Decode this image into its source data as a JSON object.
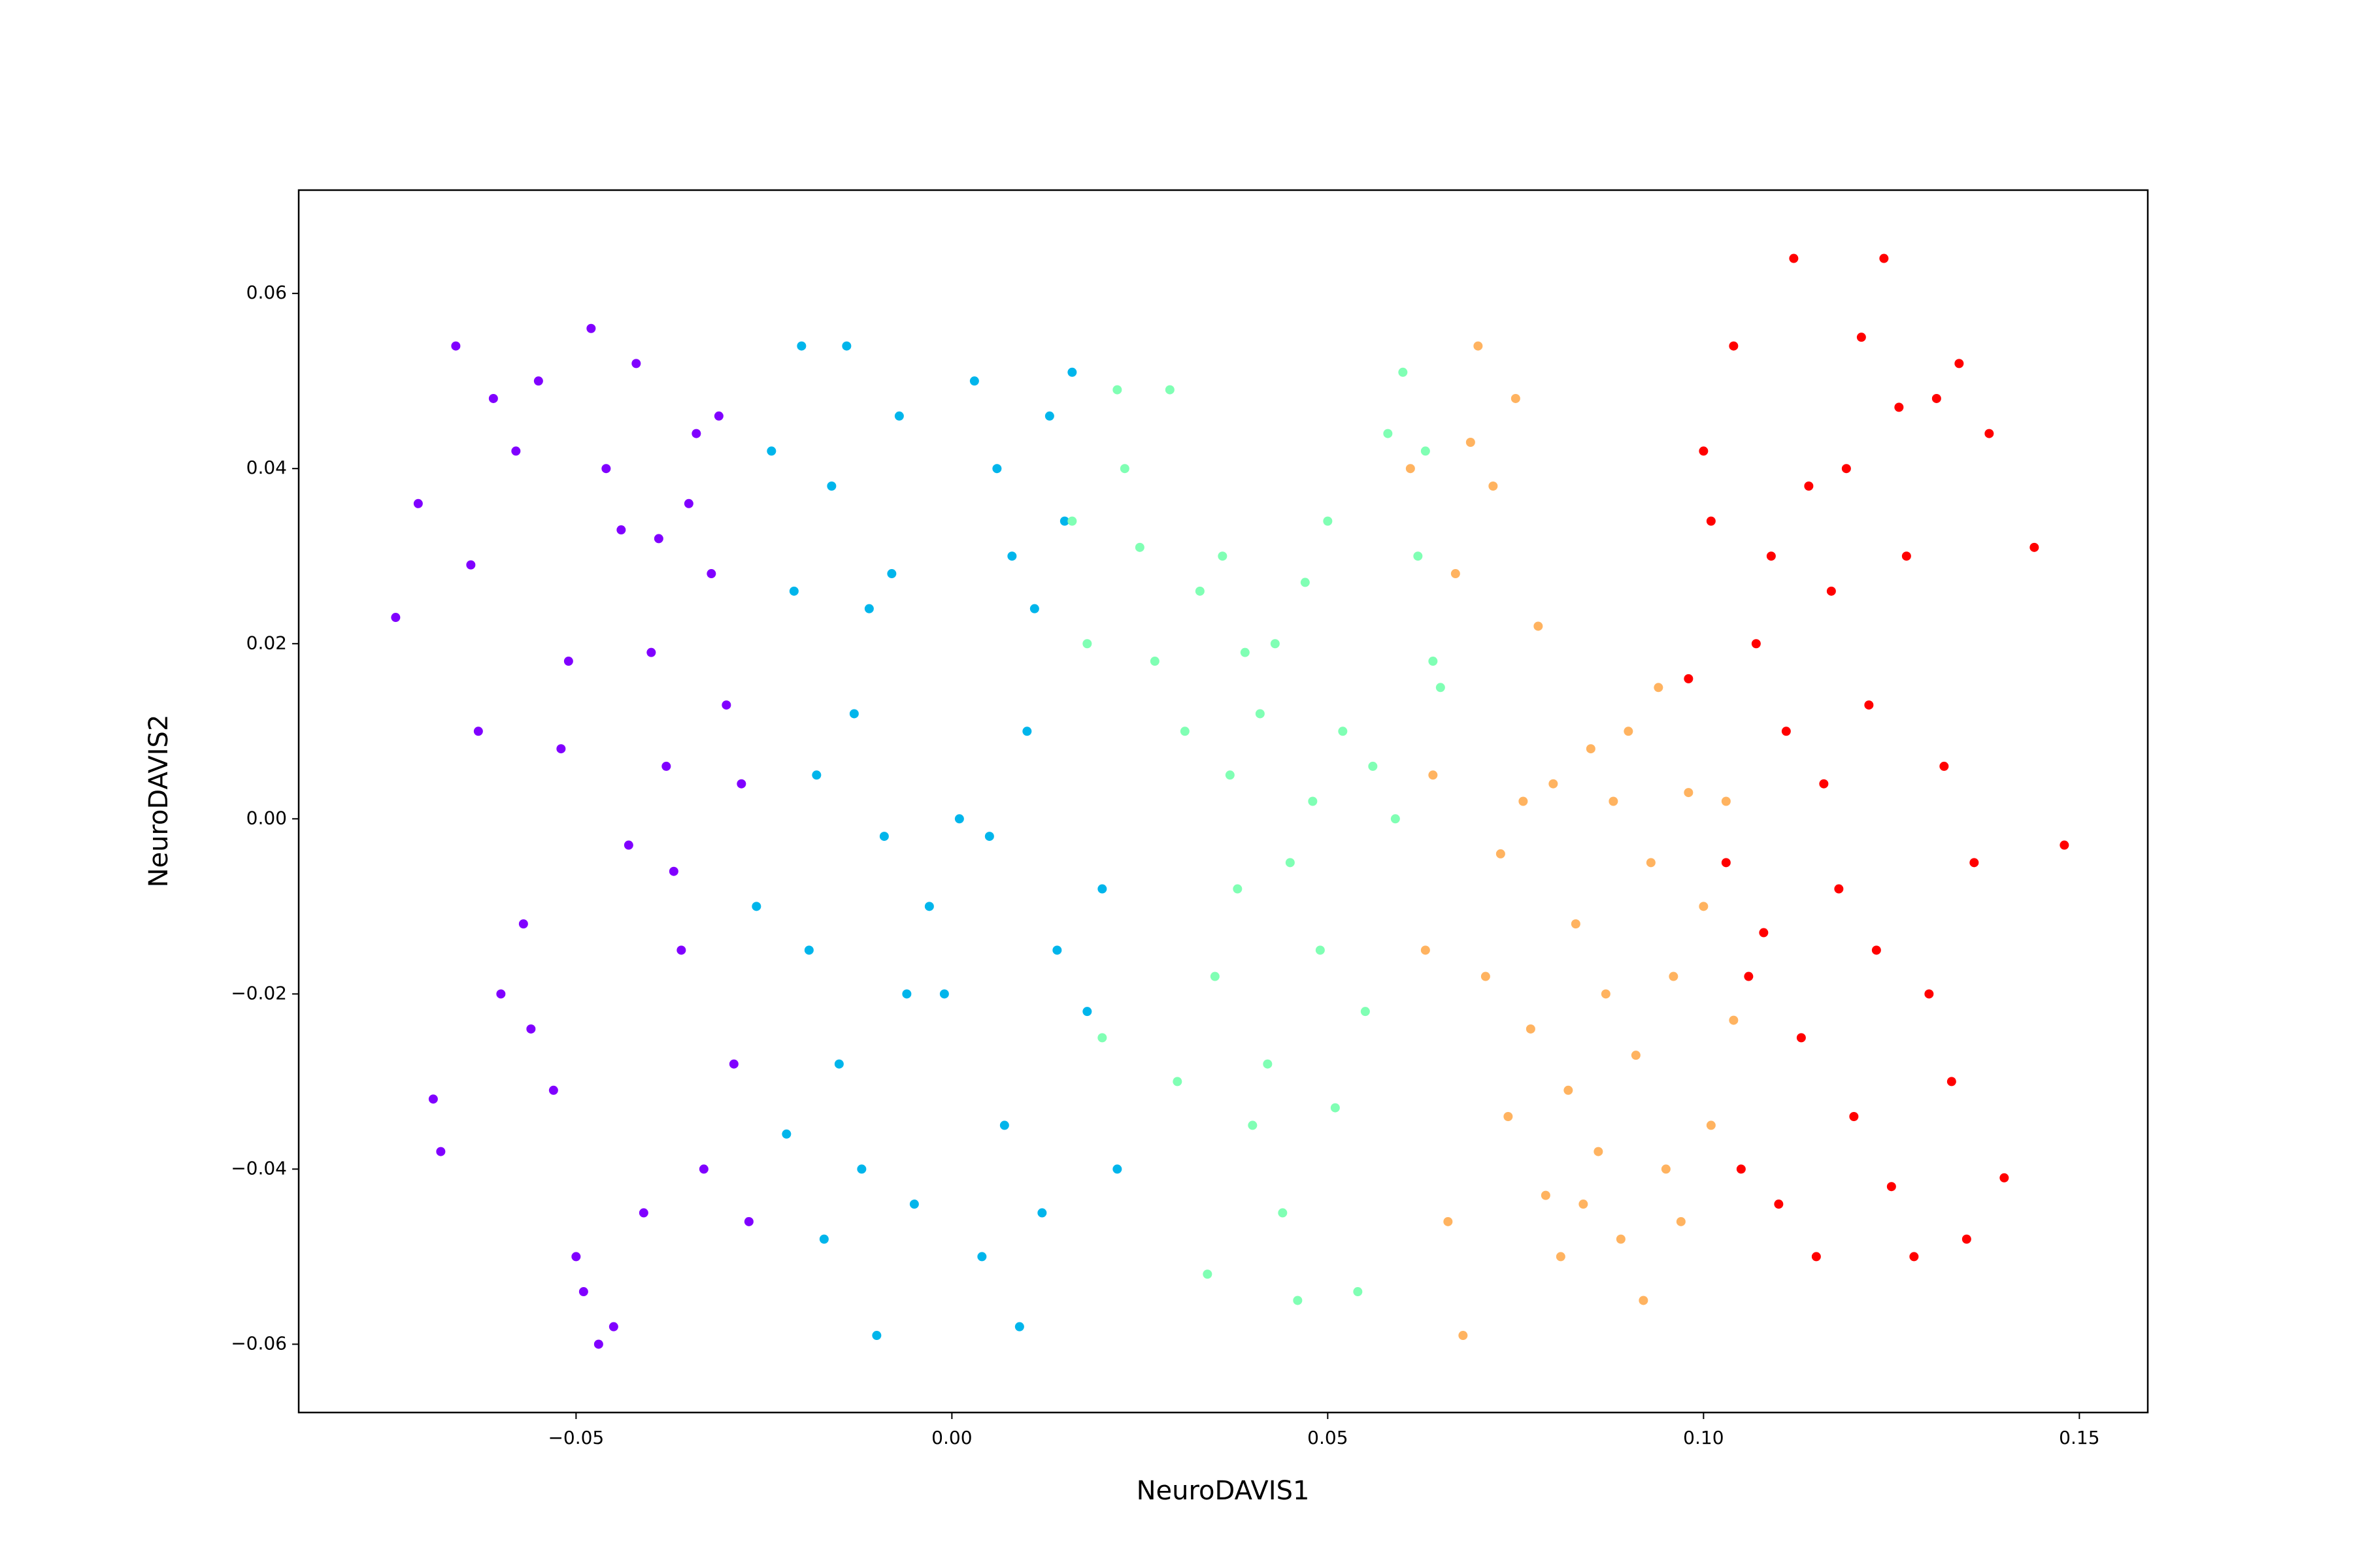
{
  "chart_data": {
    "type": "scatter",
    "x_label": "NeuroDAVIS1",
    "y_label": "NeuroDAVIS2",
    "xlim": [
      -0.0869,
      0.1591
    ],
    "ylim": [
      -0.0678,
      0.0718
    ],
    "xticks": [
      {
        "value": -0.05,
        "label": "−0.05"
      },
      {
        "value": 0,
        "label": "0.00"
      },
      0.05,
      {
        "value": 0.1,
        "label": "0.10"
      },
      0.15
    ],
    "yticks": [
      {
        "value": -0.06,
        "label": "−0.06"
      },
      {
        "value": -0.04,
        "label": "−0.04"
      },
      {
        "value": -0.02,
        "label": "−0.02"
      },
      {
        "value": 0,
        "label": "0.00"
      },
      0.02,
      0.04,
      0.06
    ],
    "series": [
      {
        "color": "#8000ff",
        "x": [
          -0.074,
          -0.071,
          -0.068,
          -0.066,
          -0.064,
          -0.061,
          -0.06,
          -0.058,
          -0.056,
          -0.055,
          -0.053,
          -0.051,
          -0.05,
          -0.048,
          -0.047,
          -0.046,
          -0.045,
          -0.044,
          -0.043,
          -0.042,
          -0.041,
          -0.04,
          -0.039,
          -0.038,
          -0.036,
          -0.035,
          -0.034,
          -0.033,
          -0.031,
          -0.03,
          -0.029,
          -0.028,
          -0.027,
          -0.069,
          -0.063,
          -0.057,
          -0.052,
          -0.049,
          -0.037,
          -0.032
        ],
        "y": [
          0.023,
          0.036,
          -0.038,
          0.054,
          0.029,
          0.048,
          -0.02,
          0.042,
          -0.024,
          0.05,
          -0.031,
          0.018,
          -0.05,
          0.056,
          -0.06,
          0.04,
          -0.058,
          0.033,
          -0.003,
          0.052,
          -0.045,
          0.019,
          0.032,
          0.006,
          -0.015,
          0.036,
          0.044,
          -0.04,
          0.046,
          0.013,
          -0.028,
          0.004,
          -0.046,
          -0.032,
          0.01,
          -0.012,
          0.008,
          -0.054,
          -0.006,
          0.028
        ]
      },
      {
        "color": "#00b5eb",
        "x": [
          -0.026,
          -0.024,
          -0.022,
          -0.021,
          -0.02,
          -0.019,
          -0.018,
          -0.017,
          -0.016,
          -0.015,
          -0.014,
          -0.013,
          -0.012,
          -0.011,
          -0.01,
          -0.009,
          -0.008,
          -0.007,
          -0.006,
          -0.005,
          -0.003,
          -0.001,
          0.001,
          0.003,
          0.004,
          0.005,
          0.006,
          0.007,
          0.008,
          0.009,
          0.01,
          0.011,
          0.012,
          0.013,
          0.014,
          0.015,
          0.016,
          0.018,
          0.02,
          0.022
        ],
        "y": [
          -0.01,
          0.042,
          -0.036,
          0.026,
          0.054,
          -0.015,
          0.005,
          -0.048,
          0.038,
          -0.028,
          0.054,
          0.012,
          -0.04,
          0.024,
          -0.059,
          -0.002,
          0.028,
          0.046,
          -0.02,
          -0.044,
          -0.01,
          -0.02,
          0.0,
          0.05,
          -0.05,
          -0.002,
          0.04,
          -0.035,
          0.03,
          -0.058,
          0.01,
          0.024,
          -0.045,
          0.046,
          -0.015,
          0.034,
          0.051,
          -0.022,
          -0.008,
          -0.04
        ]
      },
      {
        "color": "#80ffb4",
        "x": [
          0.016,
          0.018,
          0.02,
          0.022,
          0.023,
          0.025,
          0.027,
          0.029,
          0.03,
          0.031,
          0.033,
          0.034,
          0.035,
          0.036,
          0.037,
          0.038,
          0.039,
          0.04,
          0.041,
          0.042,
          0.043,
          0.044,
          0.045,
          0.046,
          0.047,
          0.048,
          0.049,
          0.05,
          0.051,
          0.052,
          0.054,
          0.055,
          0.056,
          0.058,
          0.059,
          0.06,
          0.062,
          0.063,
          0.064,
          0.065
        ],
        "y": [
          0.034,
          0.02,
          -0.025,
          0.049,
          0.04,
          0.031,
          0.018,
          0.049,
          -0.03,
          0.01,
          0.026,
          -0.052,
          -0.018,
          0.03,
          0.005,
          -0.008,
          0.019,
          -0.035,
          0.012,
          -0.028,
          0.02,
          -0.045,
          -0.005,
          -0.055,
          0.027,
          0.002,
          -0.015,
          0.034,
          -0.033,
          0.01,
          -0.054,
          -0.022,
          0.006,
          0.044,
          0.0,
          0.051,
          0.03,
          0.042,
          0.018,
          0.015
        ]
      },
      {
        "color": "#ffb360",
        "x": [
          0.061,
          0.063,
          0.064,
          0.066,
          0.067,
          0.068,
          0.069,
          0.07,
          0.071,
          0.072,
          0.073,
          0.074,
          0.075,
          0.076,
          0.077,
          0.078,
          0.079,
          0.08,
          0.081,
          0.082,
          0.083,
          0.084,
          0.085,
          0.086,
          0.087,
          0.088,
          0.089,
          0.09,
          0.091,
          0.092,
          0.093,
          0.094,
          0.095,
          0.096,
          0.097,
          0.098,
          0.1,
          0.101,
          0.103,
          0.104
        ],
        "y": [
          0.04,
          -0.015,
          0.005,
          -0.046,
          0.028,
          -0.059,
          0.043,
          0.054,
          -0.018,
          0.038,
          -0.004,
          -0.034,
          0.048,
          0.002,
          -0.024,
          0.022,
          -0.043,
          0.004,
          -0.05,
          -0.031,
          -0.012,
          -0.044,
          0.008,
          -0.038,
          -0.02,
          0.002,
          -0.048,
          0.01,
          -0.027,
          -0.055,
          -0.005,
          0.015,
          -0.04,
          -0.018,
          -0.046,
          0.003,
          -0.01,
          -0.035,
          0.002,
          -0.023
        ]
      },
      {
        "color": "#ff0000",
        "x": [
          0.098,
          0.1,
          0.101,
          0.103,
          0.104,
          0.105,
          0.106,
          0.107,
          0.108,
          0.109,
          0.11,
          0.111,
          0.112,
          0.113,
          0.114,
          0.115,
          0.116,
          0.117,
          0.118,
          0.119,
          0.12,
          0.121,
          0.122,
          0.123,
          0.124,
          0.125,
          0.126,
          0.127,
          0.128,
          0.13,
          0.131,
          0.132,
          0.133,
          0.134,
          0.135,
          0.136,
          0.138,
          0.14,
          0.144,
          0.148
        ],
        "y": [
          0.016,
          0.042,
          0.034,
          -0.005,
          0.054,
          -0.04,
          -0.018,
          0.02,
          -0.013,
          0.03,
          -0.044,
          0.01,
          0.064,
          -0.025,
          0.038,
          -0.05,
          0.004,
          0.026,
          -0.008,
          0.04,
          -0.034,
          0.055,
          0.013,
          -0.015,
          0.064,
          -0.042,
          0.047,
          0.03,
          -0.05,
          -0.02,
          0.048,
          0.006,
          -0.03,
          0.052,
          -0.048,
          -0.005,
          0.044,
          -0.041,
          0.031,
          -0.003
        ]
      }
    ]
  }
}
